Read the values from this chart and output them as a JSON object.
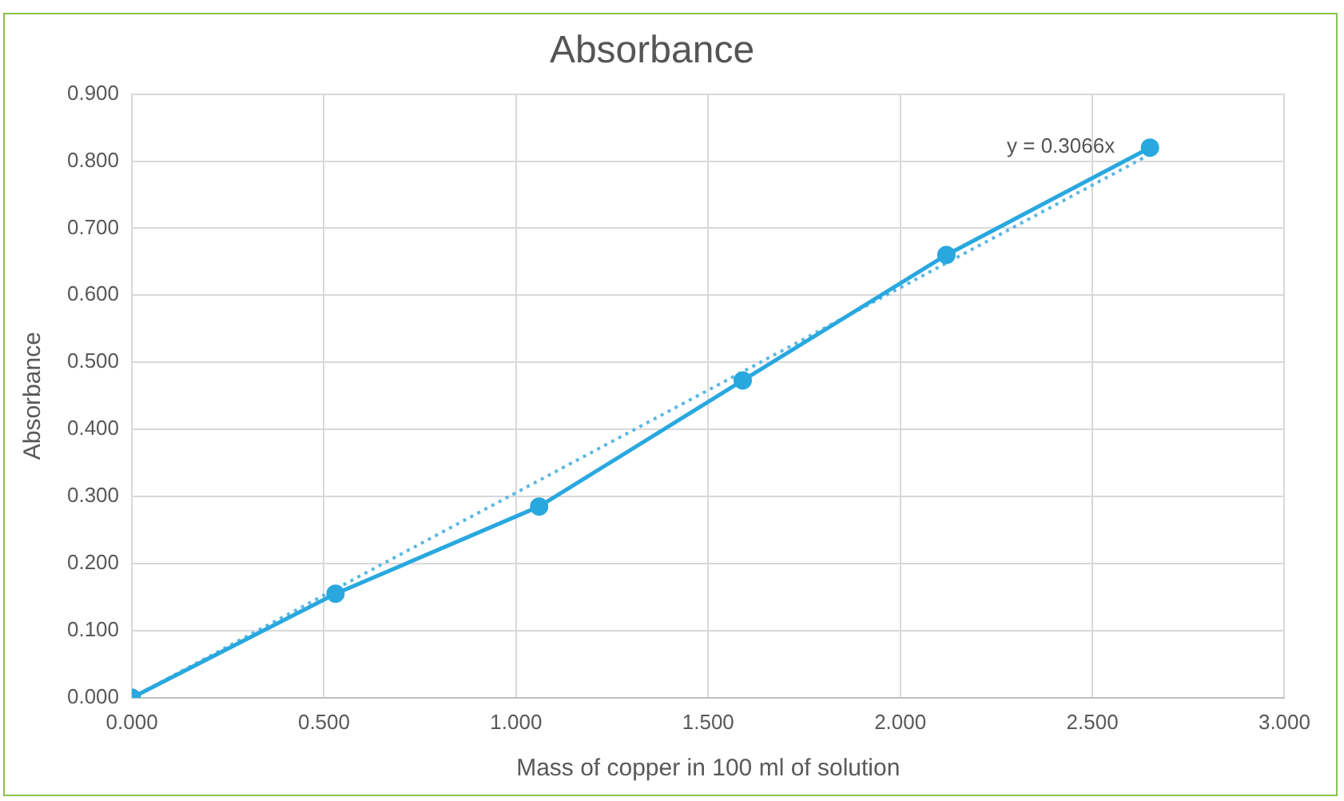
{
  "chart_data": {
    "type": "line",
    "title": "Absorbance",
    "xlabel": "Mass of copper in 100 ml of solution",
    "ylabel": "Absorbance",
    "series": [
      {
        "color": "#29a8df",
        "marker": "circle",
        "line_style": "solid",
        "x": [
          0,
          0.53,
          1.06,
          1.59,
          2.12,
          2.65
        ],
        "values": [
          0,
          0.155,
          0.285,
          0.473,
          0.66,
          0.82
        ]
      },
      {
        "name": "y = 0.3066x",
        "color": "#5bb8e2",
        "marker": "none",
        "line_style": "dotted",
        "x": [
          0,
          2.65
        ],
        "values": [
          0,
          0.81
        ]
      }
    ],
    "xlim": [
      0,
      3
    ],
    "xticks": [
      {
        "value": 0,
        "label": "0.000"
      },
      {
        "value": 0.5,
        "label": "0.500"
      },
      {
        "value": 1,
        "label": "1.000"
      },
      {
        "value": 1.5,
        "label": "1.500"
      },
      {
        "value": 2,
        "label": "2.000"
      },
      {
        "value": 2.5,
        "label": "2.500"
      },
      {
        "value": 3,
        "label": "3.000"
      }
    ],
    "ylim": [
      0,
      0.9
    ],
    "yticks": [
      {
        "value": 0,
        "label": "0.000"
      },
      {
        "value": 0.1,
        "label": "0.100"
      },
      {
        "value": 0.2,
        "label": "0.200"
      },
      {
        "value": 0.3,
        "label": "0.300"
      },
      {
        "value": 0.4,
        "label": "0.400"
      },
      {
        "value": 0.5,
        "label": "0.500"
      },
      {
        "value": 0.6,
        "label": "0.600"
      },
      {
        "value": 0.7,
        "label": "0.700"
      },
      {
        "value": 0.8,
        "label": "0.800"
      },
      {
        "value": 0.9,
        "label": "0.900"
      }
    ],
    "grid": true,
    "legend": false
  }
}
